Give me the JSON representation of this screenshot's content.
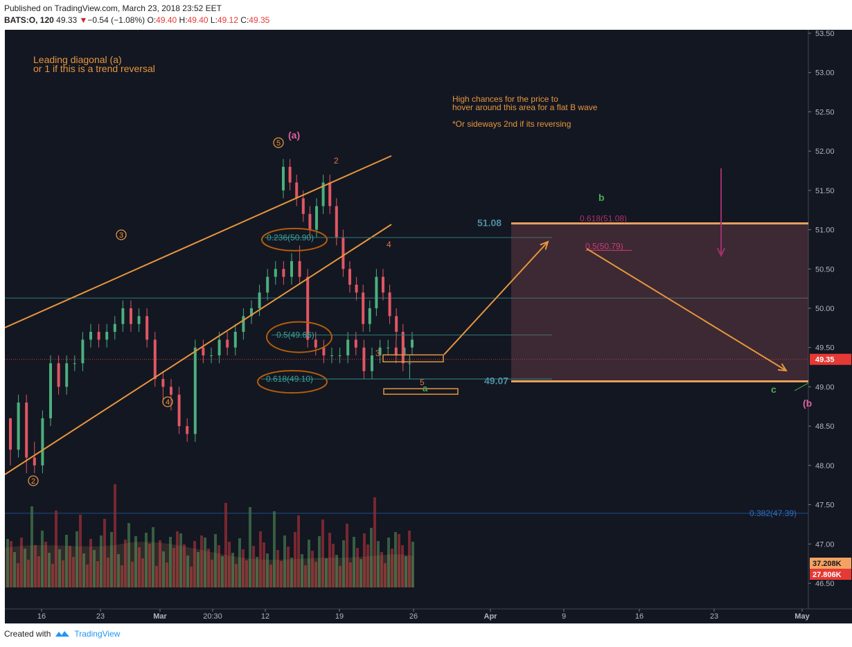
{
  "header": {
    "published": "Published on TradingView.com, March 23, 2018 23:52 EET",
    "symbol": "BATS:O, 120",
    "last": "49.33",
    "change": "−0.54 (−1.08%)",
    "open_label": "O:",
    "open": "49.40",
    "high_label": "H:",
    "high": "49.40",
    "low_label": "L:",
    "low": "49.12",
    "close_label": "C:",
    "close": "49.35"
  },
  "footer": {
    "created_with": "Created with",
    "brand": "TradingView"
  },
  "chart_data": {
    "type": "candlestick",
    "symbol": "BATS:O",
    "interval": "120",
    "ylim": [
      46.2,
      53.5
    ],
    "y_ticks": [
      "53.50",
      "53.00",
      "52.50",
      "52.00",
      "51.50",
      "51.00",
      "50.50",
      "50.00",
      "49.50",
      "49.00",
      "48.50",
      "48.00",
      "47.50",
      "47.00",
      "46.50"
    ],
    "x_ticks": [
      "16",
      "23",
      "Mar",
      "20:30",
      "12",
      "19",
      "26",
      "Apr",
      "9",
      "16",
      "23",
      "May"
    ],
    "last_price_label": "49.35",
    "volume_labels": [
      "37.208K",
      "27.806K"
    ],
    "fib_levels": [
      {
        "label": "0.236(50.90)",
        "value": 50.9
      },
      {
        "label": "0.5(49.66)",
        "value": 49.66
      },
      {
        "label": "0.618(49.10)",
        "value": 49.1
      },
      {
        "label": "0.382(47.39)",
        "value": 47.39
      },
      {
        "label": "0.618(51.08)",
        "value": 51.08
      },
      {
        "label": "0.5(50.79)",
        "value": 50.79
      }
    ],
    "price_labels": [
      {
        "label": "51.08",
        "value": 51.08
      },
      {
        "label": "49.07",
        "value": 49.07
      }
    ],
    "annotations": {
      "leading_diagonal": "Leading diagonal (a)",
      "trend_reversal": "or 1 if this is a trend reversal",
      "high_chances": "High chances for the price to",
      "hover_area": "hover around this area for a flat B wave",
      "sideways": "*Or sideways 2nd if its reversing"
    },
    "wave_labels": {
      "w2": "2",
      "w3": "3",
      "w4": "4",
      "w5": "5",
      "a_paren": "(a)",
      "s2": "2",
      "s3": "3",
      "s4": "4",
      "s5": "5",
      "a": "a",
      "b": "b",
      "c": "c",
      "b_paren": "(b"
    },
    "candles_o": [
      [
        48.6,
        48.2,
        48.6,
        48.0
      ],
      [
        48.2,
        48.8,
        48.9,
        48.1
      ],
      [
        48.8,
        48.1,
        48.9,
        47.9
      ],
      [
        48.1,
        48.0,
        48.3,
        47.9
      ],
      [
        48.0,
        48.6,
        48.7,
        47.9
      ],
      [
        48.6,
        49.3,
        49.4,
        48.5
      ],
      [
        49.3,
        49.0,
        49.4,
        48.9
      ],
      [
        49.0,
        49.3,
        49.4,
        48.9
      ],
      [
        49.3,
        49.3,
        49.4,
        49.2
      ],
      [
        49.3,
        49.6,
        49.7,
        49.2
      ],
      [
        49.6,
        49.7,
        49.8,
        49.5
      ],
      [
        49.7,
        49.6,
        49.8,
        49.5
      ],
      [
        49.6,
        49.7,
        49.8,
        49.5
      ],
      [
        49.7,
        49.8,
        49.9,
        49.6
      ],
      [
        49.8,
        50.0,
        50.1,
        49.7
      ],
      [
        50.0,
        49.8,
        50.1,
        49.7
      ],
      [
        49.8,
        49.9,
        50.0,
        49.7
      ],
      [
        49.9,
        49.6,
        50.0,
        49.5
      ],
      [
        49.6,
        49.1,
        49.7,
        49.0
      ],
      [
        49.1,
        49.0,
        49.2,
        48.8
      ],
      [
        49.0,
        48.9,
        49.1,
        48.7
      ],
      [
        48.9,
        48.5,
        49.0,
        48.4
      ],
      [
        48.5,
        48.4,
        48.6,
        48.3
      ],
      [
        48.4,
        49.5,
        49.6,
        48.3
      ],
      [
        49.5,
        49.4,
        49.6,
        49.3
      ],
      [
        49.4,
        49.4,
        49.5,
        49.3
      ],
      [
        49.4,
        49.6,
        49.7,
        49.3
      ],
      [
        49.6,
        49.5,
        49.7,
        49.4
      ],
      [
        49.5,
        49.7,
        49.8,
        49.4
      ],
      [
        49.7,
        49.9,
        50.0,
        49.6
      ],
      [
        49.9,
        50.0,
        50.1,
        49.8
      ],
      [
        50.0,
        50.2,
        50.3,
        49.9
      ],
      [
        50.2,
        50.4,
        50.5,
        50.1
      ],
      [
        50.4,
        50.5,
        50.6,
        50.3
      ],
      [
        50.5,
        50.4,
        50.6,
        50.3
      ],
      [
        50.4,
        50.6,
        50.7,
        50.3
      ],
      [
        50.6,
        50.4,
        50.8,
        50.3
      ],
      [
        50.4,
        49.6,
        50.5,
        49.5
      ],
      [
        49.6,
        49.5,
        49.7,
        49.4
      ],
      [
        49.5,
        49.4,
        49.6,
        49.3
      ],
      [
        49.4,
        49.4,
        49.5,
        49.3
      ],
      [
        49.4,
        49.4,
        49.5,
        49.3
      ],
      [
        49.4,
        49.6,
        49.7,
        49.3
      ],
      [
        49.6,
        49.5,
        49.7,
        49.4
      ],
      [
        49.5,
        49.2,
        49.6,
        49.1
      ],
      [
        49.2,
        49.4,
        49.5,
        49.1
      ],
      [
        49.4,
        49.5,
        49.6,
        49.3
      ],
      [
        49.5,
        49.5,
        49.6,
        49.4
      ],
      [
        49.5,
        49.4,
        49.6,
        49.3
      ],
      [
        49.4,
        49.5,
        49.6,
        49.3
      ],
      [
        49.5,
        49.6,
        49.7,
        49.4
      ]
    ]
  }
}
